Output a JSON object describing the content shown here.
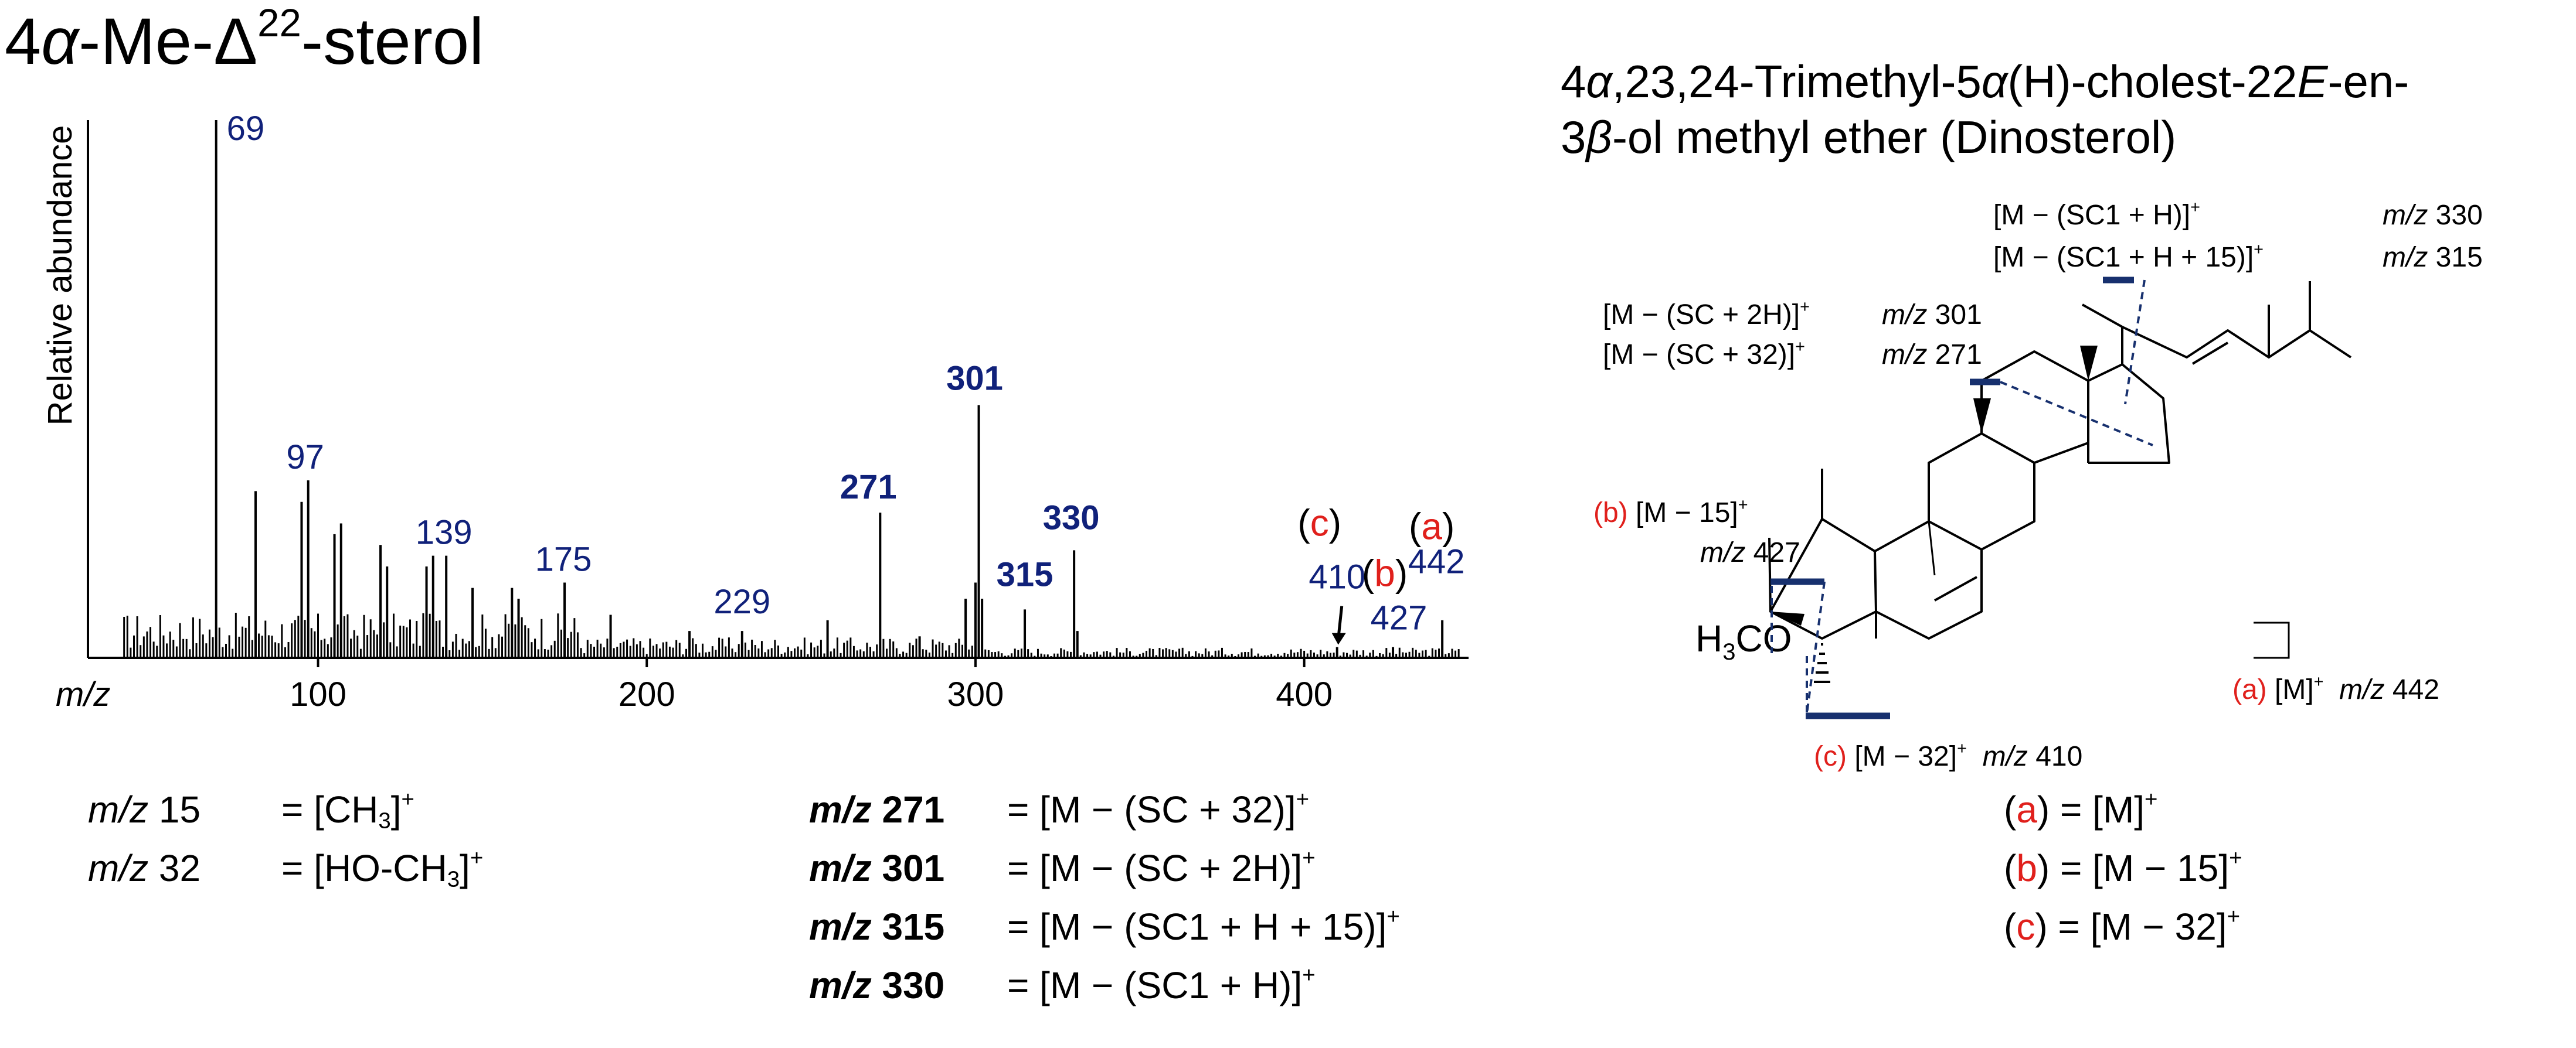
{
  "title": {
    "prefix": "4",
    "alpha": "α",
    "mid": "-Me-Δ",
    "sup": "22",
    "suffix": "-sterol"
  },
  "compound": {
    "line1": [
      {
        "t": "4"
      },
      {
        "t": "α",
        "i": true
      },
      {
        "t": ",23,24-Trimethyl-5"
      },
      {
        "t": "α",
        "i": true
      },
      {
        "t": "(H)-cholest-22"
      },
      {
        "t": "E",
        "i": true
      },
      {
        "t": "-en-"
      }
    ],
    "line2": [
      {
        "t": "3"
      },
      {
        "t": "β",
        "i": true
      },
      {
        "t": "-ol methyl ether (Dinosterol)"
      }
    ]
  },
  "chart_data": {
    "type": "bar",
    "title": "4α-Me-Δ22-sterol",
    "xlabel": "m/z",
    "ylabel": "Relative abundance",
    "xlim": [
      30,
      450
    ],
    "ylim": [
      0,
      100
    ],
    "xticks": [
      100,
      200,
      300,
      400
    ],
    "major_peaks": [
      {
        "x": 69,
        "y": 100
      },
      {
        "x": 81,
        "y": 31
      },
      {
        "x": 95,
        "y": 29
      },
      {
        "x": 97,
        "y": 33
      },
      {
        "x": 105,
        "y": 23
      },
      {
        "x": 107,
        "y": 25
      },
      {
        "x": 119,
        "y": 21
      },
      {
        "x": 121,
        "y": 17
      },
      {
        "x": 133,
        "y": 17
      },
      {
        "x": 135,
        "y": 19
      },
      {
        "x": 139,
        "y": 19
      },
      {
        "x": 147,
        "y": 13
      },
      {
        "x": 159,
        "y": 13
      },
      {
        "x": 161,
        "y": 11
      },
      {
        "x": 175,
        "y": 14
      },
      {
        "x": 189,
        "y": 8
      },
      {
        "x": 213,
        "y": 5
      },
      {
        "x": 229,
        "y": 5
      },
      {
        "x": 255,
        "y": 7
      },
      {
        "x": 271,
        "y": 27
      },
      {
        "x": 283,
        "y": 4
      },
      {
        "x": 297,
        "y": 11
      },
      {
        "x": 300,
        "y": 14
      },
      {
        "x": 301,
        "y": 47
      },
      {
        "x": 302,
        "y": 11
      },
      {
        "x": 315,
        "y": 9
      },
      {
        "x": 330,
        "y": 20
      },
      {
        "x": 331,
        "y": 5
      },
      {
        "x": 410,
        "y": 2
      },
      {
        "x": 427,
        "y": 2
      },
      {
        "x": 442,
        "y": 7
      }
    ],
    "peak_labels": [
      {
        "x": 69,
        "text": "69",
        "bold": false
      },
      {
        "x": 97,
        "text": "97",
        "bold": false
      },
      {
        "x": 139,
        "text": "139",
        "bold": false
      },
      {
        "x": 175,
        "text": "175",
        "bold": false
      },
      {
        "x": 229,
        "text": "229",
        "bold": false
      },
      {
        "x": 271,
        "text": "271",
        "bold": true
      },
      {
        "x": 301,
        "text": "301",
        "bold": true
      },
      {
        "x": 315,
        "text": "315",
        "bold": true
      },
      {
        "x": 330,
        "text": "330",
        "bold": true
      },
      {
        "x": 410,
        "text": "410",
        "bold": false
      },
      {
        "x": 427,
        "text": "427",
        "bold": false
      },
      {
        "x": 442,
        "text": "442",
        "bold": false
      }
    ],
    "annotations": [
      {
        "letter": "c",
        "x": 410
      },
      {
        "letter": "b",
        "x": 427
      },
      {
        "letter": "a",
        "x": 442
      }
    ]
  },
  "fragments": {
    "f330": {
      "ion": "[M − (SC1 + H)]",
      "mz": "m/z",
      "val": "330"
    },
    "f315": {
      "ion": "[M − (SC1 + H + 15)]",
      "mz": "m/z",
      "val": "315"
    },
    "f301": {
      "ion": "[M − (SC + 2H)]",
      "mz": "m/z",
      "val": "301"
    },
    "f271": {
      "ion": "[M − (SC + 32)]",
      "mz": "m/z",
      "val": "271"
    },
    "b": {
      "letter": "(b)",
      "ion": "[M − 15]",
      "mz": "m/z",
      "val": "427"
    },
    "a": {
      "letter": "(a)",
      "ion": "[M]",
      "mz": "m/z",
      "val": "442"
    },
    "c": {
      "letter": "(c)",
      "ion": "[M − 32]",
      "mz": "m/z",
      "val": "410"
    },
    "plus": "+",
    "h3c": {
      "h": "H",
      "sub": "3",
      "c": "C",
      "o": "O"
    }
  },
  "defs_left": [
    {
      "mz": "m/z",
      "val": "15",
      "eq": "= [CH",
      "sub": "3",
      "end": "]",
      "sup": "+"
    },
    {
      "mz": "m/z",
      "val": "32",
      "eq": "= [HO-CH",
      "sub": "3",
      "end": "]",
      "sup": "+"
    }
  ],
  "defs_mid": [
    {
      "mz": "m/z",
      "val": "271",
      "eq": "= [M − (SC + 32)]",
      "sup": "+"
    },
    {
      "mz": "m/z",
      "val": "301",
      "eq": "= [M − (SC + 2H)]",
      "sup": "+"
    },
    {
      "mz": "m/z",
      "val": "315",
      "eq": "= [M − (SC1 + H + 15)]",
      "sup": "+"
    },
    {
      "mz": "m/z",
      "val": "330",
      "eq": "= [M − (SC1 + H)]",
      "sup": "+"
    }
  ],
  "defs_right": [
    {
      "letter": "a",
      "open": "(",
      "close": ")",
      "eq": " = [M]",
      "sup": "+"
    },
    {
      "letter": "b",
      "open": "(",
      "close": ")",
      "eq": " = [M − 15]",
      "sup": "+"
    },
    {
      "letter": "c",
      "open": "(",
      "close": ")",
      "eq": " = [M − 32]",
      "sup": "+"
    }
  ],
  "colors": {
    "peak_label": "#10217a",
    "accent_red": "#e0201c",
    "bond_navy": "#17306e",
    "axis": "#000000"
  }
}
